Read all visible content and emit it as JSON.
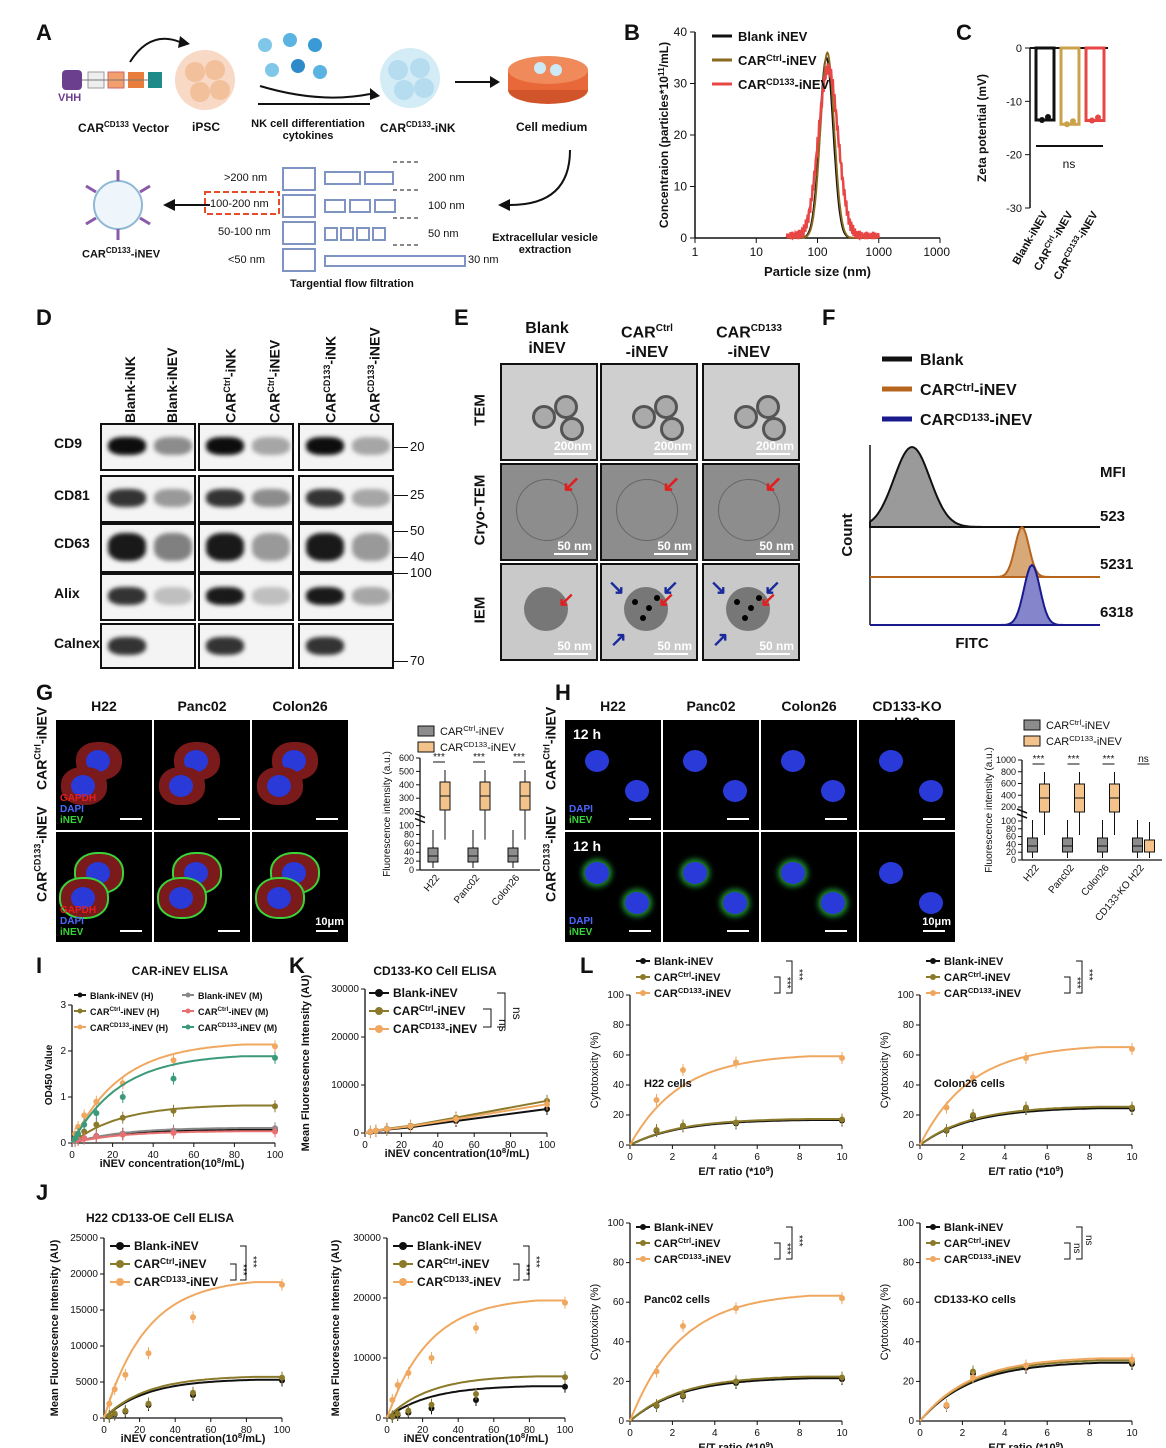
{
  "panelA": {
    "label": "A",
    "vhh": "VHH",
    "vector": "CAR",
    "vector_sup": "CD133",
    "vector_rest": " Vector",
    "ipsc": "iPSC",
    "cytokines": "NK cell differentiation cytokines",
    "ink": "CAR",
    "ink_sup": "CD133",
    "ink_rest": "-iNK",
    "medium": "Cell medium",
    "extraction": "Extracellular vesicle extraction",
    "tff": "Targential flow filtration",
    "inev": "CAR",
    "inev_sup": "CD133",
    "inev_rest": "-iNEV",
    "sizes_left": [
      ">200 nm",
      "100-200 nm",
      "50-100 nm",
      "<50 nm"
    ],
    "sizes_right": [
      "200 nm",
      "100 nm",
      "50 nm",
      "30 nm"
    ]
  },
  "panelB": {
    "label": "B",
    "chart_data": {
      "type": "line",
      "xlabel": "Particle size (nm)",
      "ylabel": "Concentraion (particles*10",
      "ylabel_sup": "11",
      "ylabel_rest": "/mL)",
      "xscale": "log",
      "xlim": [
        1,
        10000
      ],
      "ylim": [
        0,
        40
      ],
      "x_ticks": [
        "1",
        "10",
        "100",
        "1000",
        "10000"
      ],
      "y_ticks": [
        "0",
        "10",
        "20",
        "30",
        "40"
      ],
      "series": [
        {
          "name": "Blank iNEV",
          "color": "#111111",
          "peak_x": 140,
          "peak_y": 35
        },
        {
          "name": "CAR^Ctrl-iNEV",
          "color": "#8a6a1e",
          "peak_x": 145,
          "peak_y": 36
        },
        {
          "name": "CAR^CD133-iNEV",
          "color": "#e84545",
          "peak_x": 150,
          "peak_y": 33
        }
      ],
      "legend": [
        {
          "pre": "Blank iNEV",
          "sup": "",
          "post": ""
        },
        {
          "pre": "CAR",
          "sup": "Ctrl",
          "post": "-iNEV"
        },
        {
          "pre": "CAR",
          "sup": "CD133",
          "post": "-iNEV"
        }
      ]
    }
  },
  "panelC": {
    "label": "C",
    "chart_data": {
      "type": "bar",
      "ylabel": "Zeta potential (mV)",
      "ylim": [
        -30,
        0
      ],
      "y_ticks": [
        "0",
        "-10",
        "-20",
        "-30"
      ],
      "categories": [
        "Blank-iNEV",
        "CAR^Ctrl-iNEV",
        "CAR^CD133-iNEV"
      ],
      "values": [
        -13.5,
        -14.3,
        -13.6
      ],
      "colors": [
        "#111111",
        "#c9a24a",
        "#e84545"
      ],
      "annotation": "ns"
    },
    "cat_labels": [
      {
        "pre": "Blank-iNEV",
        "sup": "",
        "post": ""
      },
      {
        "pre": "CAR",
        "sup": "Ctrl",
        "post": "-iNEV"
      },
      {
        "pre": "CAR",
        "sup": "CD133",
        "post": "-iNEV"
      }
    ]
  },
  "panelD": {
    "label": "D",
    "lanes": [
      {
        "pre": "Blank-iNK",
        "sup": "",
        "post": ""
      },
      {
        "pre": "Blank-iNEV",
        "sup": "",
        "post": ""
      },
      {
        "pre": "CAR",
        "sup": "Ctrl",
        "post": "-iNK"
      },
      {
        "pre": "CAR",
        "sup": "Ctrl",
        "post": "-iNEV"
      },
      {
        "pre": "CAR",
        "sup": "CD133",
        "post": "-iNK"
      },
      {
        "pre": "CAR",
        "sup": "CD133",
        "post": "-iNEV"
      }
    ],
    "rows": [
      "CD9",
      "CD81",
      "CD63",
      "Alix",
      "Calnexin"
    ],
    "markers": [
      "20",
      "25",
      "50",
      "40",
      "100",
      "70"
    ]
  },
  "panelE": {
    "label": "E",
    "cols": [
      {
        "line1": "Blank",
        "line1_sup": "",
        "line2": "iNEV"
      },
      {
        "line1": "CAR",
        "line1_sup": "Ctrl",
        "line2": "-iNEV"
      },
      {
        "line1": "CAR",
        "line1_sup": "CD133",
        "line2": "-iNEV"
      }
    ],
    "rows": [
      "TEM",
      "Cryo-TEM",
      "IEM"
    ],
    "scale_tem": "200nm",
    "scale_other": "50 nm"
  },
  "panelF": {
    "label": "F",
    "legend": [
      {
        "pre": "Blank",
        "sup": "",
        "post": "",
        "color": "#111111"
      },
      {
        "pre": "CAR",
        "sup": "Ctrl",
        "post": "-iNEV",
        "color": "#b5651d"
      },
      {
        "pre": "CAR",
        "sup": "CD133",
        "post": "-iNEV",
        "color": "#1a1a8c"
      }
    ],
    "mfi_label": "MFI",
    "mfi_values": [
      "523",
      "5231",
      "6318"
    ],
    "xlabel": "FITC",
    "ylabel": "Count"
  },
  "panelG": {
    "label": "G",
    "cols": [
      "H22",
      "Panc02",
      "Colon26"
    ],
    "row1": {
      "pre": "CAR",
      "sup": "Ctrl",
      "post": "-iNEV"
    },
    "row2": {
      "pre": "CAR",
      "sup": "CD133",
      "post": "-iNEV"
    },
    "stain": [
      "GAPDH",
      "DAPI",
      "iNEV"
    ],
    "scale": "10μm",
    "chart_data": {
      "type": "box",
      "ylabel": "Fluorescence intensity (a.u.)",
      "y_ticks_top": [
        "200",
        "300",
        "400",
        "500",
        "600"
      ],
      "y_ticks_bottom": [
        "0",
        "20",
        "40",
        "60",
        "80",
        "100"
      ],
      "categories": [
        "H22",
        "Panc02",
        "Colon26"
      ],
      "legend": [
        {
          "pre": "CAR",
          "sup": "Ctrl",
          "post": "-iNEV",
          "color": "#8c8c8c"
        },
        {
          "pre": "CAR",
          "sup": "CD133",
          "post": "-iNEV",
          "color": "#f3c38b"
        }
      ],
      "median_ctrl": [
        15,
        17,
        12
      ],
      "median_cd133": [
        300,
        250,
        300
      ],
      "sig": [
        "***",
        "***",
        "***"
      ]
    }
  },
  "panelH": {
    "label": "H",
    "cols": [
      "H22",
      "Panc02",
      "Colon26",
      "CD133-KO H22"
    ],
    "time": "12 h",
    "row1": {
      "pre": "CAR",
      "sup": "Ctrl",
      "post": "-iNEV"
    },
    "row2": {
      "pre": "CAR",
      "sup": "CD133",
      "post": "-iNEV"
    },
    "stain": [
      "DAPI",
      "iNEV"
    ],
    "scale": "10μm",
    "chart_data": {
      "type": "box",
      "ylabel": "Fluorescence intensity (a.u.)",
      "y_ticks_top": [
        "200",
        "400",
        "600",
        "800",
        "1000"
      ],
      "y_ticks_bottom": [
        "0",
        "20",
        "40",
        "60",
        "80",
        "100"
      ],
      "categories": [
        "H22",
        "Panc02",
        "Colon26",
        "CD133-KO H22"
      ],
      "legend": [
        {
          "pre": "CAR",
          "sup": "Ctrl",
          "post": "-iNEV",
          "color": "#8c8c8c"
        },
        {
          "pre": "CAR",
          "sup": "CD133",
          "post": "-iNEV",
          "color": "#f3c38b"
        }
      ],
      "sig": [
        "***",
        "***",
        "***",
        "ns"
      ]
    }
  },
  "panelI": {
    "label": "I",
    "chart_data": {
      "type": "line",
      "title": "CAR-iNEV ELISA",
      "xlabel": "iNEV concentration(10",
      "xlabel_sup": "8",
      "xlabel_rest": "/mL)",
      "ylabel": "OD450 Value",
      "xlim": [
        0,
        100
      ],
      "ylim": [
        0,
        3
      ],
      "x_ticks": [
        "0",
        "20",
        "40",
        "60",
        "80",
        "100"
      ],
      "y_ticks": [
        "0",
        "1",
        "2",
        "3"
      ],
      "x": [
        1.5,
        3,
        6,
        12,
        25,
        50,
        100
      ],
      "series": [
        {
          "label": "Blank-iNEV (H)",
          "color": "#111111",
          "values": [
            0.05,
            0.08,
            0.1,
            0.15,
            0.2,
            0.25,
            0.28
          ]
        },
        {
          "label": "Blank-iNEV (M)",
          "color": "#888888",
          "values": [
            0.05,
            0.08,
            0.1,
            0.14,
            0.2,
            0.27,
            0.32
          ]
        },
        {
          "label": "CAR^Ctrl-iNEV (H)",
          "color": "#8a7a2a",
          "values": [
            0.1,
            0.15,
            0.25,
            0.4,
            0.55,
            0.7,
            0.8
          ]
        },
        {
          "label": "CAR^Ctrl-iNEV (M)",
          "color": "#e87070",
          "values": [
            0.05,
            0.07,
            0.1,
            0.14,
            0.18,
            0.22,
            0.25
          ]
        },
        {
          "label": "CAR^CD133-iNEV (H)",
          "color": "#f0a860",
          "values": [
            0.2,
            0.35,
            0.6,
            0.9,
            1.3,
            1.8,
            2.1
          ]
        },
        {
          "label": "CAR^CD133-iNEV (M)",
          "color": "#3a9a7a",
          "values": [
            0.1,
            0.2,
            0.4,
            0.65,
            1.0,
            1.4,
            1.85
          ]
        }
      ],
      "legend": [
        {
          "pre": "Blank-iNEV (H)",
          "sup": "",
          "post": ""
        },
        {
          "pre": "Blank-iNEV (M)",
          "sup": "",
          "post": ""
        },
        {
          "pre": "CAR",
          "sup": "Ctrl",
          "post": "-iNEV (H)"
        },
        {
          "pre": "CAR",
          "sup": "Ctrl",
          "post": "-iNEV (M)"
        },
        {
          "pre": "CAR",
          "sup": "CD133",
          "post": "-iNEV (H)"
        },
        {
          "pre": "CAR",
          "sup": "CD133",
          "post": "-iNEV (M)"
        }
      ]
    }
  },
  "panelK": {
    "label": "K",
    "chart_data": {
      "type": "line",
      "title": "CD133-KO Cell ELISA",
      "xlabel": "iNEV concentration(10",
      "xlabel_sup": "8",
      "xlabel_rest": "/mL)",
      "ylabel": "Mean Fluorescence Intensity (AU)",
      "xlim": [
        0,
        100
      ],
      "ylim": [
        0,
        30000
      ],
      "x_ticks": [
        "0",
        "20",
        "40",
        "60",
        "80",
        "100"
      ],
      "y_ticks": [
        "0",
        "10000",
        "20000",
        "30000"
      ],
      "x": [
        3,
        6,
        12,
        25,
        50,
        100
      ],
      "series": [
        {
          "color": "#111111",
          "values": [
            200,
            400,
            700,
            1200,
            2500,
            5000
          ]
        },
        {
          "color": "#8a7a2a",
          "values": [
            300,
            500,
            900,
            1500,
            3200,
            6700
          ]
        },
        {
          "color": "#f0a860",
          "values": [
            250,
            450,
            800,
            1400,
            2900,
            6000
          ]
        }
      ],
      "legend": [
        {
          "pre": "Blank-iNEV",
          "sup": "",
          "post": ""
        },
        {
          "pre": "CAR",
          "sup": "Ctrl",
          "post": "-iNEV"
        },
        {
          "pre": "CAR",
          "sup": "CD133",
          "post": "-iNEV"
        }
      ],
      "sig": [
        "ns",
        "ns"
      ]
    }
  },
  "panelJ": {
    "label": "J",
    "charts": [
      {
        "title": "H22 CD133-OE Cell ELISA",
        "xlabel": "iNEV concentration(10",
        "xlabel_sup": "8",
        "xlabel_rest": "/mL)",
        "ylabel": "Mean Fluorescence Intensity (AU)",
        "xlim": [
          0,
          100
        ],
        "ylim": [
          0,
          25000
        ],
        "x_ticks": [
          "0",
          "20",
          "40",
          "60",
          "80",
          "100"
        ],
        "y_ticks": [
          "0",
          "5000",
          "10000",
          "15000",
          "20000",
          "25000"
        ],
        "x": [
          3,
          6,
          12,
          25,
          50,
          100
        ],
        "series": [
          {
            "color": "#111111",
            "values": [
              200,
              500,
              900,
              1800,
              3200,
              5200
            ]
          },
          {
            "color": "#8a7a2a",
            "values": [
              300,
              600,
              1000,
              2000,
              3500,
              5600
            ]
          },
          {
            "color": "#f0a860",
            "values": [
              2000,
              4000,
              6000,
              9000,
              14000,
              18500
            ]
          }
        ],
        "sig": [
          "***",
          "***"
        ]
      },
      {
        "title": "Panc02 Cell ELISA",
        "xlabel": "iNEV concentration(10",
        "xlabel_sup": "8",
        "xlabel_rest": "/mL)",
        "ylabel": "Mean Fluorescence Intensity (AU)",
        "xlim": [
          0,
          100
        ],
        "ylim": [
          0,
          30000
        ],
        "x_ticks": [
          "0",
          "20",
          "40",
          "60",
          "80",
          "100"
        ],
        "y_ticks": [
          "0",
          "10000",
          "20000",
          "30000"
        ],
        "x": [
          3,
          6,
          12,
          25,
          50,
          100
        ],
        "series": [
          {
            "color": "#111111",
            "values": [
              200,
              500,
              900,
              1600,
              3000,
              5200
            ]
          },
          {
            "color": "#8a7a2a",
            "values": [
              300,
              700,
              1200,
              2200,
              4000,
              6800
            ]
          },
          {
            "color": "#f0a860",
            "values": [
              3000,
              5500,
              7500,
              10000,
              15000,
              19200
            ]
          }
        ],
        "sig": [
          "***",
          "***"
        ]
      }
    ],
    "legend": [
      {
        "pre": "Blank-iNEV",
        "sup": "",
        "post": ""
      },
      {
        "pre": "CAR",
        "sup": "Ctrl",
        "post": "-iNEV"
      },
      {
        "pre": "CAR",
        "sup": "CD133",
        "post": "-iNEV"
      }
    ]
  },
  "panelL": {
    "label": "L",
    "charts": [
      {
        "subtitle": "H22 cells",
        "ctrl": [
          10,
          13,
          15,
          17
        ],
        "cd133": [
          30,
          50,
          55,
          58
        ],
        "sig": [
          "***",
          "***"
        ]
      },
      {
        "subtitle": "Colon26 cells",
        "ctrl": [
          10,
          20,
          25,
          25
        ],
        "cd133": [
          25,
          45,
          58,
          64
        ],
        "sig": [
          "***",
          "***"
        ]
      },
      {
        "subtitle": "Panc02 cells",
        "ctrl": [
          8,
          13,
          20,
          22
        ],
        "cd133": [
          25,
          48,
          57,
          62
        ],
        "sig": [
          "***",
          "***"
        ]
      },
      {
        "subtitle": "CD133-KO cells",
        "ctrl": [
          8,
          25,
          28,
          30
        ],
        "cd133": [
          8,
          22,
          28,
          31
        ],
        "sig": [
          "ns",
          "ns"
        ]
      }
    ],
    "x": [
      1.25,
      2.5,
      5,
      10
    ],
    "xlabel": "E/T ratio (*10",
    "xlabel_sup": "9",
    "xlabel_rest": ")",
    "ylabel": "Cytotoxicity (%)",
    "x_ticks": [
      "0",
      "2",
      "4",
      "6",
      "8",
      "10"
    ],
    "y_ticks": [
      "0",
      "20",
      "40",
      "60",
      "80",
      "100"
    ],
    "xlim": [
      0,
      10
    ],
    "ylim": [
      0,
      100
    ],
    "legend": [
      {
        "pre": "Blank-iNEV",
        "sup": "",
        "post": ""
      },
      {
        "pre": "CAR",
        "sup": "Ctrl",
        "post": "-iNEV"
      },
      {
        "pre": "CAR",
        "sup": "CD133",
        "post": "-iNEV"
      }
    ],
    "colors": [
      "#111111",
      "#8a7a2a",
      "#f0a860"
    ]
  }
}
